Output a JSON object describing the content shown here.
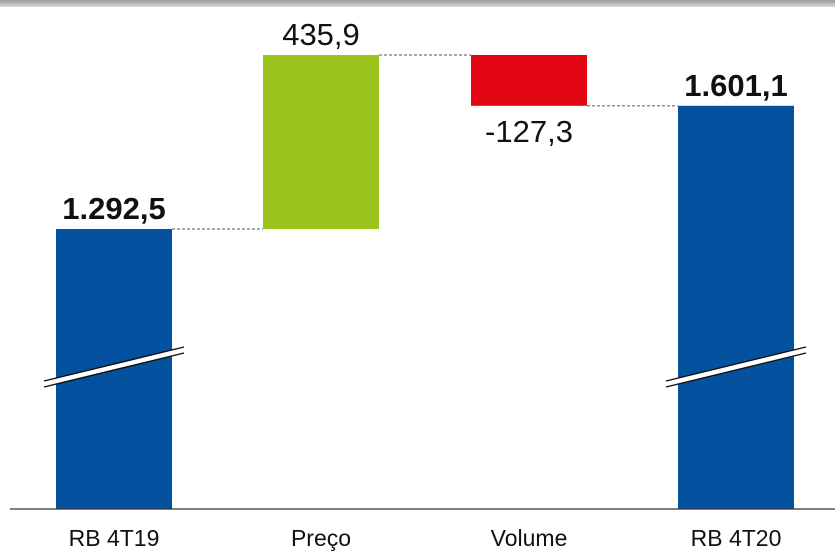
{
  "chart_data": {
    "type": "bar",
    "subtype": "waterfall",
    "categories": [
      "RB 4T19",
      "Preço",
      "Volume",
      "RB 4T20"
    ],
    "values": [
      1292.5,
      435.9,
      -127.3,
      1601.1
    ],
    "value_labels": [
      "1.292,5",
      "435,9",
      "-127,3",
      "1.601,1"
    ],
    "bar_kinds": [
      "total",
      "delta",
      "delta",
      "total"
    ],
    "colors": {
      "total": "#0451A0",
      "increase": "#9AC31C",
      "decrease": "#E30613"
    },
    "axis_break_on_totals": true,
    "connectors": "dashed",
    "title": "",
    "xlabel": "",
    "ylabel": "",
    "ylim": [
      1000,
      1800
    ],
    "grid": false,
    "legend": "none"
  }
}
